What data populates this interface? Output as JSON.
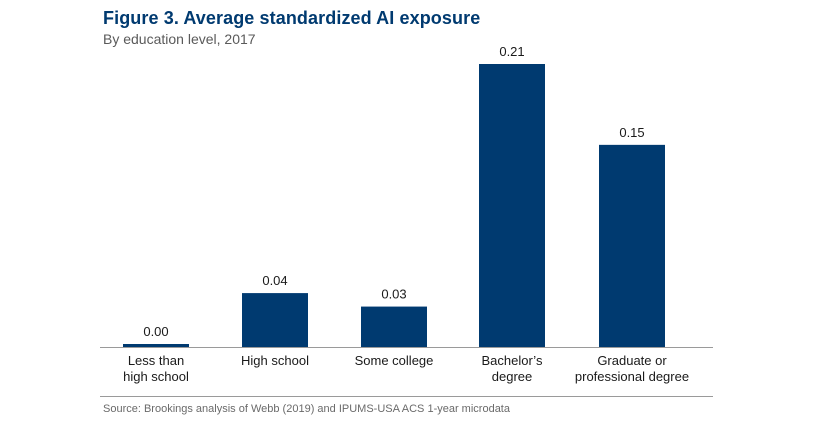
{
  "title": "Figure 3. Average standardized AI exposure",
  "subtitle": "By education level, 2017",
  "source": "Source: Brookings analysis of Webb (2019) and IPUMS-USA ACS 1-year microdata",
  "colors": {
    "bar": "#003a70",
    "title": "#003a70",
    "text": "#1a1a1a",
    "axis": "#9a9a9a"
  },
  "chart_data": {
    "type": "bar",
    "title": "Figure 3. Average standardized AI exposure",
    "subtitle": "By education level, 2017",
    "categories": [
      [
        "Less than",
        "high school"
      ],
      [
        "High school"
      ],
      [
        "Some college"
      ],
      [
        "Bachelor’s",
        "degree"
      ],
      [
        "Graduate or",
        "professional degree"
      ]
    ],
    "values": [
      0.0,
      0.04,
      0.03,
      0.21,
      0.15
    ],
    "data_labels": [
      "0.00",
      "0.04",
      "0.03",
      "0.21",
      "0.15"
    ],
    "xlabel": "",
    "ylabel": "",
    "ylim": [
      0,
      0.21
    ],
    "grid": false
  }
}
